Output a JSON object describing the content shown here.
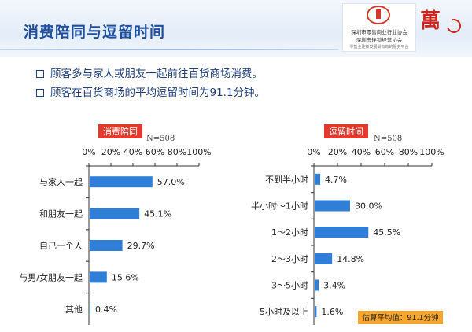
{
  "slide": {
    "title": "消费陪同与逗留时间",
    "bullets": [
      "顾客多与家人或朋友一起前往百货商场消费。",
      "顾客在百货商场的平均逗留时间为91.1分钟。"
    ],
    "logo": {
      "line1": "深圳市零售商业行业协会",
      "line2": "深圳市连锁经营协会",
      "line3": "零售业连锁发展最有效的服务平台",
      "brand": "萬"
    }
  },
  "chart_data": [
    {
      "type": "bar",
      "orientation": "horizontal",
      "title": "消费陪同",
      "note": "N=508",
      "categories": [
        "与家人一起",
        "和朋友一起",
        "自己一个人",
        "与男/女朋友一起",
        "其他"
      ],
      "values": [
        57.0,
        45.1,
        29.7,
        15.6,
        0.4
      ],
      "value_labels": [
        "57.0%",
        "45.1%",
        "29.7%",
        "15.6%",
        "0.4%"
      ],
      "ticks": [
        "0%",
        "20%",
        "40%",
        "60%",
        "80%",
        "100%"
      ],
      "xlim": [
        0,
        100
      ],
      "color": "#2f7fd8"
    },
    {
      "type": "bar",
      "orientation": "horizontal",
      "title": "逗留时间",
      "note": "N=508",
      "categories": [
        "不到半小时",
        "半小时～1小时",
        "1～2小时",
        "2～3小时",
        "3～5小时",
        "5小时及以上"
      ],
      "values": [
        4.7,
        30.0,
        45.5,
        14.8,
        3.4,
        1.6
      ],
      "value_labels": [
        "4.7%",
        "30.0%",
        "45.5%",
        "14.8%",
        "3.4%",
        "1.6%"
      ],
      "ticks": [
        "0%",
        "20%",
        "40%",
        "60%",
        "80%",
        "100%"
      ],
      "xlim": [
        0,
        100
      ],
      "color": "#2f7fd8",
      "annotation": "估算平均值：91.1分钟"
    }
  ]
}
